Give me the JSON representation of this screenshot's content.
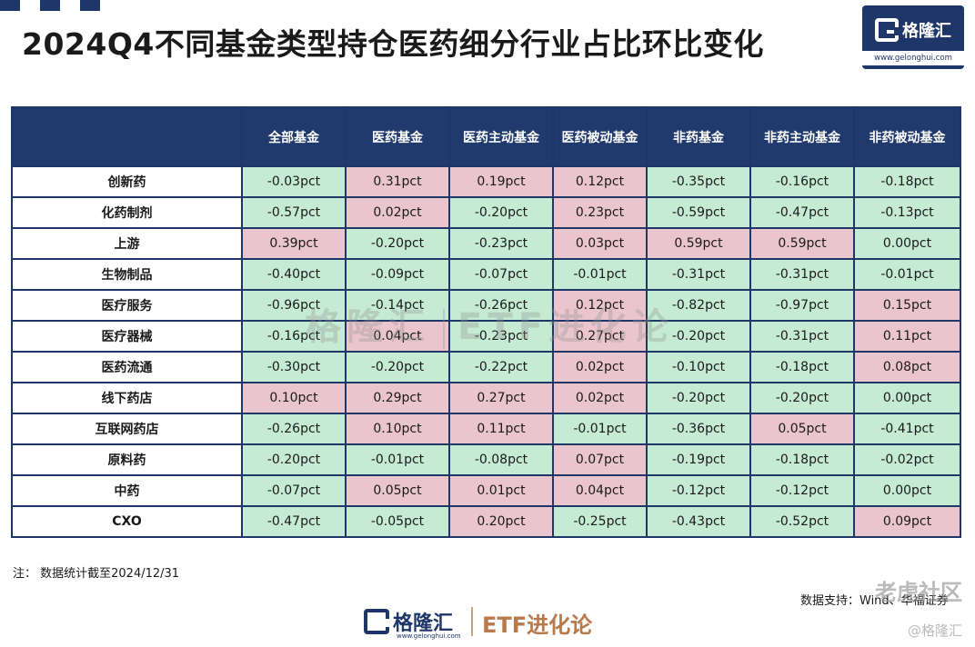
{
  "title": "2024Q4不同基金类型持仓医药细分行业占比环比变化",
  "logo": {
    "name": "格隆汇",
    "url": "www.gelonghui.com"
  },
  "colors": {
    "positive": "#ebc5ce",
    "negative": "#c5ebd3",
    "header_bg": "#203a6e",
    "brand": "#1f3768"
  },
  "watermark": {
    "logo": "格隆汇",
    "etf": "ETF进化论"
  },
  "chart_data": {
    "type": "table",
    "title": "2024Q4不同基金类型持仓医药细分行业占比环比变化",
    "columns": [
      "",
      "全部基金",
      "医药基金",
      "医药主动基金",
      "医药被动基金",
      "非药基金",
      "非药主动基金",
      "非药被动基金"
    ],
    "rows": [
      {
        "label": "创新药",
        "values": [
          "-0.03pct",
          "0.31pct",
          "0.19pct",
          "0.12pct",
          "-0.35pct",
          "-0.16pct",
          "-0.18pct"
        ]
      },
      {
        "label": "化药制剂",
        "values": [
          "-0.57pct",
          "0.02pct",
          "-0.20pct",
          "0.23pct",
          "-0.59pct",
          "-0.47pct",
          "-0.13pct"
        ]
      },
      {
        "label": "上游",
        "values": [
          "0.39pct",
          "-0.20pct",
          "-0.23pct",
          "0.03pct",
          "0.59pct",
          "0.59pct",
          "0.00pct"
        ]
      },
      {
        "label": "生物制品",
        "values": [
          "-0.40pct",
          "-0.09pct",
          "-0.07pct",
          "-0.01pct",
          "-0.31pct",
          "-0.31pct",
          "-0.01pct"
        ]
      },
      {
        "label": "医疗服务",
        "values": [
          "-0.96pct",
          "-0.14pct",
          "-0.26pct",
          "0.12pct",
          "-0.82pct",
          "-0.97pct",
          "0.15pct"
        ]
      },
      {
        "label": "医疗器械",
        "values": [
          "-0.16pct",
          "0.04pct",
          "-0.23pct",
          "0.27pct",
          "-0.20pct",
          "-0.31pct",
          "0.11pct"
        ]
      },
      {
        "label": "医药流通",
        "values": [
          "-0.30pct",
          "-0.20pct",
          "-0.22pct",
          "0.02pct",
          "-0.10pct",
          "-0.18pct",
          "0.08pct"
        ]
      },
      {
        "label": "线下药店",
        "values": [
          "0.10pct",
          "0.29pct",
          "0.27pct",
          "0.02pct",
          "-0.20pct",
          "-0.20pct",
          "0.00pct"
        ]
      },
      {
        "label": "互联网药店",
        "values": [
          "-0.26pct",
          "0.10pct",
          "0.11pct",
          "-0.01pct",
          "-0.36pct",
          "0.05pct",
          "-0.41pct"
        ]
      },
      {
        "label": "原料药",
        "values": [
          "-0.20pct",
          "-0.01pct",
          "-0.08pct",
          "0.07pct",
          "-0.19pct",
          "-0.18pct",
          "-0.02pct"
        ]
      },
      {
        "label": "中药",
        "values": [
          "-0.07pct",
          "0.05pct",
          "0.01pct",
          "0.04pct",
          "-0.12pct",
          "-0.12pct",
          "0.00pct"
        ]
      },
      {
        "label": "CXO",
        "values": [
          "-0.47pct",
          "-0.05pct",
          "0.20pct",
          "-0.25pct",
          "-0.43pct",
          "-0.52pct",
          "0.09pct"
        ]
      }
    ]
  },
  "note": "注：  数据统计截至2024/12/31",
  "source": "数据支持：Wind、华福证券",
  "footer": {
    "logo": "格隆汇",
    "url": "www.gelonghui.com",
    "etf": "ETF进化论"
  },
  "corner_watermark": {
    "line1": "老虎社区",
    "line2": "@格隆汇"
  }
}
